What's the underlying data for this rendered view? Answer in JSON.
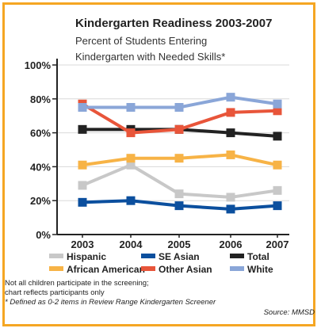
{
  "colors": {
    "frame": "#f5a623",
    "axis": "#222222",
    "grid": "#d9d9d9"
  },
  "chart_data": {
    "type": "line",
    "title": "Kindergarten Readiness 2003-2007",
    "subtitle_line1": "Percent of Students Entering",
    "subtitle_line2": "Kindergarten with Needed Skills*",
    "x": [
      "2003",
      "2004",
      "2005",
      "2006",
      "2007"
    ],
    "y_ticks": [
      "0%",
      "20%",
      "40%",
      "60%",
      "80%",
      "100%"
    ],
    "ylim": [
      0,
      100
    ],
    "grid": true,
    "legend_placement": "bottom",
    "series": [
      {
        "name": "Hispanic",
        "color": "#c8c8c8",
        "values": [
          29,
          41,
          24,
          22,
          26
        ]
      },
      {
        "name": "SE Asian",
        "color": "#0b4f9e",
        "values": [
          19,
          20,
          17,
          15,
          17
        ]
      },
      {
        "name": "Total",
        "color": "#222222",
        "values": [
          62,
          62,
          62,
          60,
          58
        ]
      },
      {
        "name": "African American",
        "color": "#f7b346",
        "values": [
          41,
          45,
          45,
          47,
          41
        ]
      },
      {
        "name": "Other Asian",
        "color": "#e8553a",
        "values": [
          77,
          60,
          62,
          72,
          73
        ]
      },
      {
        "name": "White",
        "color": "#8aa6d8",
        "values": [
          75,
          75,
          75,
          81,
          77
        ]
      }
    ]
  },
  "footnotes": {
    "line1": "Not all children participate in the screening;",
    "line2": "chart reflects participants only",
    "line3": "* Defined as 0-2 items in Review Range Kindergarten Screener",
    "source": "Source: MMSD"
  }
}
